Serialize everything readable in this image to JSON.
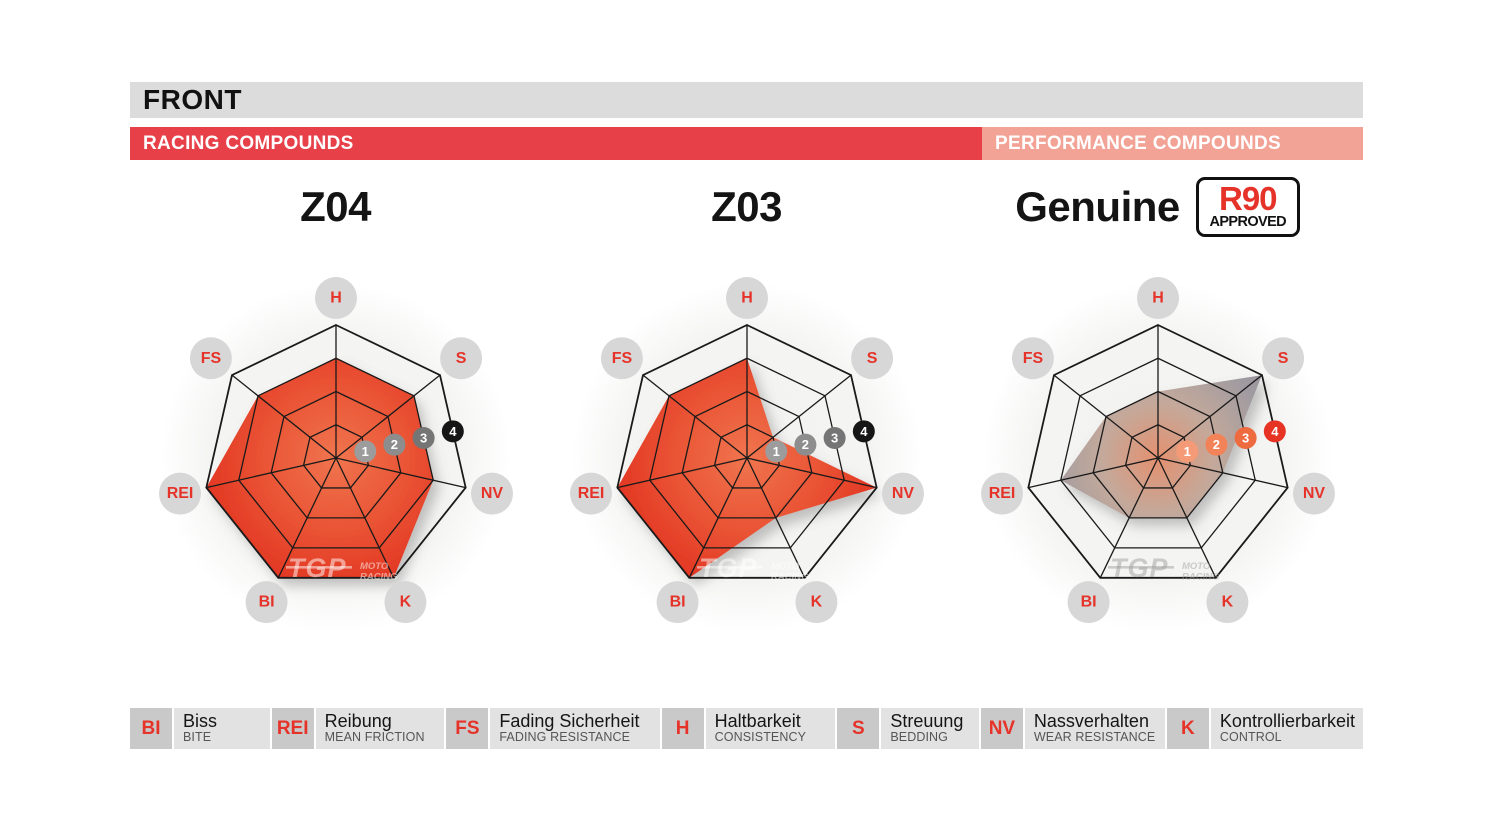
{
  "header": {
    "title": "FRONT",
    "sections": [
      {
        "label": "RACING COMPOUNDS"
      },
      {
        "label": "PERFORMANCE COMPOUNDS"
      }
    ]
  },
  "chart_data": [
    {
      "type": "radar",
      "title": "Z04",
      "group": "RACING COMPOUNDS",
      "palette": "racing",
      "categories": [
        "H",
        "S",
        "NV",
        "K",
        "BI",
        "REI",
        "FS"
      ],
      "values": [
        3,
        3,
        3,
        4,
        4,
        4,
        3
      ],
      "scale": {
        "min": 0,
        "max": 4,
        "ticks": [
          "1",
          "2",
          "3",
          "4"
        ]
      },
      "rings": 4,
      "legend_position": "bottom"
    },
    {
      "type": "radar",
      "title": "Z03",
      "group": "RACING COMPOUNDS",
      "palette": "racing",
      "categories": [
        "H",
        "S",
        "NV",
        "K",
        "BI",
        "REI",
        "FS"
      ],
      "values": [
        3,
        1,
        4,
        2,
        4,
        4,
        3
      ],
      "scale": {
        "min": 0,
        "max": 4,
        "ticks": [
          "1",
          "2",
          "3",
          "4"
        ]
      },
      "rings": 4,
      "legend_position": "bottom"
    },
    {
      "type": "radar",
      "title": "Genuine",
      "approval": {
        "line1": "R90",
        "line2": "APPROVED"
      },
      "group": "PERFORMANCE COMPOUNDS",
      "palette": "genuine",
      "categories": [
        "H",
        "S",
        "NV",
        "K",
        "BI",
        "REI",
        "FS"
      ],
      "values": [
        2,
        4,
        2,
        2,
        2,
        3,
        2
      ],
      "scale": {
        "min": 0,
        "max": 4,
        "ticks": [
          "1",
          "2",
          "3",
          "4"
        ]
      },
      "rings": 4,
      "legend_position": "bottom"
    }
  ],
  "legend": [
    {
      "abbr": "BI",
      "term": "Biss",
      "subterm": "BITE"
    },
    {
      "abbr": "REI",
      "term": "Reibung",
      "subterm": "MEAN FRICTION"
    },
    {
      "abbr": "FS",
      "term": "Fading Sicherheit",
      "subterm": "FADING RESISTANCE"
    },
    {
      "abbr": "H",
      "term": "Haltbarkeit",
      "subterm": "CONSISTENCY"
    },
    {
      "abbr": "S",
      "term": "Streuung",
      "subterm": "BEDDING"
    },
    {
      "abbr": "NV",
      "term": "Nassverhalten",
      "subterm": "WEAR RESISTANCE"
    },
    {
      "abbr": "K",
      "term": "Kontrollierbarkeit",
      "subterm": "CONTROL"
    }
  ],
  "watermark": {
    "logo": "TGP",
    "sub_top": "MOTO",
    "sub_bottom": "RACING"
  },
  "colors": {
    "brand_red": "#e74049",
    "salmon": "#f2a396",
    "bar_gray": "#dcdcdc",
    "axis_label_red": "#e6332a",
    "axis_circle_gray": "#d7d7d7",
    "web_stroke": "#1a1a1a",
    "racing_gradient": [
      [
        0,
        "#f0754f"
      ],
      [
        0.55,
        "#e95233"
      ],
      [
        1,
        "#e23322"
      ]
    ],
    "genuine_gradient": [
      [
        0,
        "#e4906f"
      ],
      [
        0.4,
        "#c4a99b"
      ],
      [
        0.8,
        "#a09ba0"
      ],
      [
        1,
        "#97939b"
      ]
    ],
    "racing_ticks": [
      "#9c9c9c",
      "#8d8d8d",
      "#757575",
      "#161616"
    ],
    "genuine_ticks": [
      "#f59a76",
      "#f28257",
      "#ee6a3f",
      "#e63323"
    ],
    "watermark_racing": "rgba(255,255,255,0.5)",
    "watermark_genuine": "rgba(150,150,150,0.45)"
  }
}
